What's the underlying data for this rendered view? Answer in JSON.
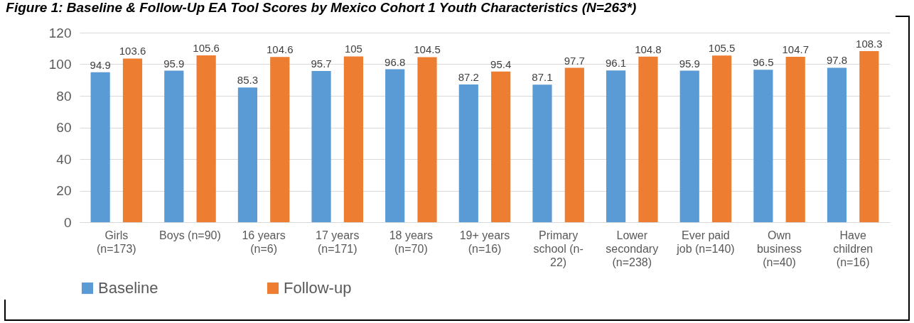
{
  "chart_data": {
    "type": "bar",
    "title": "Figure 1: Baseline & Follow-Up EA Tool Scores by Mexico Cohort 1 Youth Characteristics (N=263*)",
    "categories": [
      "Girls\n(n=173)",
      "Boys (n=90)",
      "16 years\n(n=6)",
      "17 years\n(n=171)",
      "18  years\n(n=70)",
      "19+ years\n(n=16)",
      "Primary\nschool (n-\n22)",
      "Lower\nsecondary\n(n=238)",
      "Ever paid\njob (n=140)",
      "Own\nbusiness\n(n=40)",
      "Have\nchildren\n(n=16)"
    ],
    "series": [
      {
        "name": "Baseline",
        "color": "#5b9bd5",
        "values": [
          94.9,
          95.9,
          85.3,
          95.7,
          96.8,
          87.2,
          87.1,
          96.1,
          95.9,
          96.5,
          97.8
        ]
      },
      {
        "name": "Follow-up",
        "color": "#ed7d31",
        "values": [
          103.6,
          105.6,
          104.6,
          105,
          104.5,
          95.4,
          97.7,
          104.8,
          105.5,
          104.7,
          108.3
        ]
      }
    ],
    "ylim": [
      0,
      120
    ],
    "yticks": [
      0,
      20,
      40,
      60,
      80,
      100,
      120
    ],
    "grid": "y",
    "legend": "bottom",
    "data_labels": true
  }
}
